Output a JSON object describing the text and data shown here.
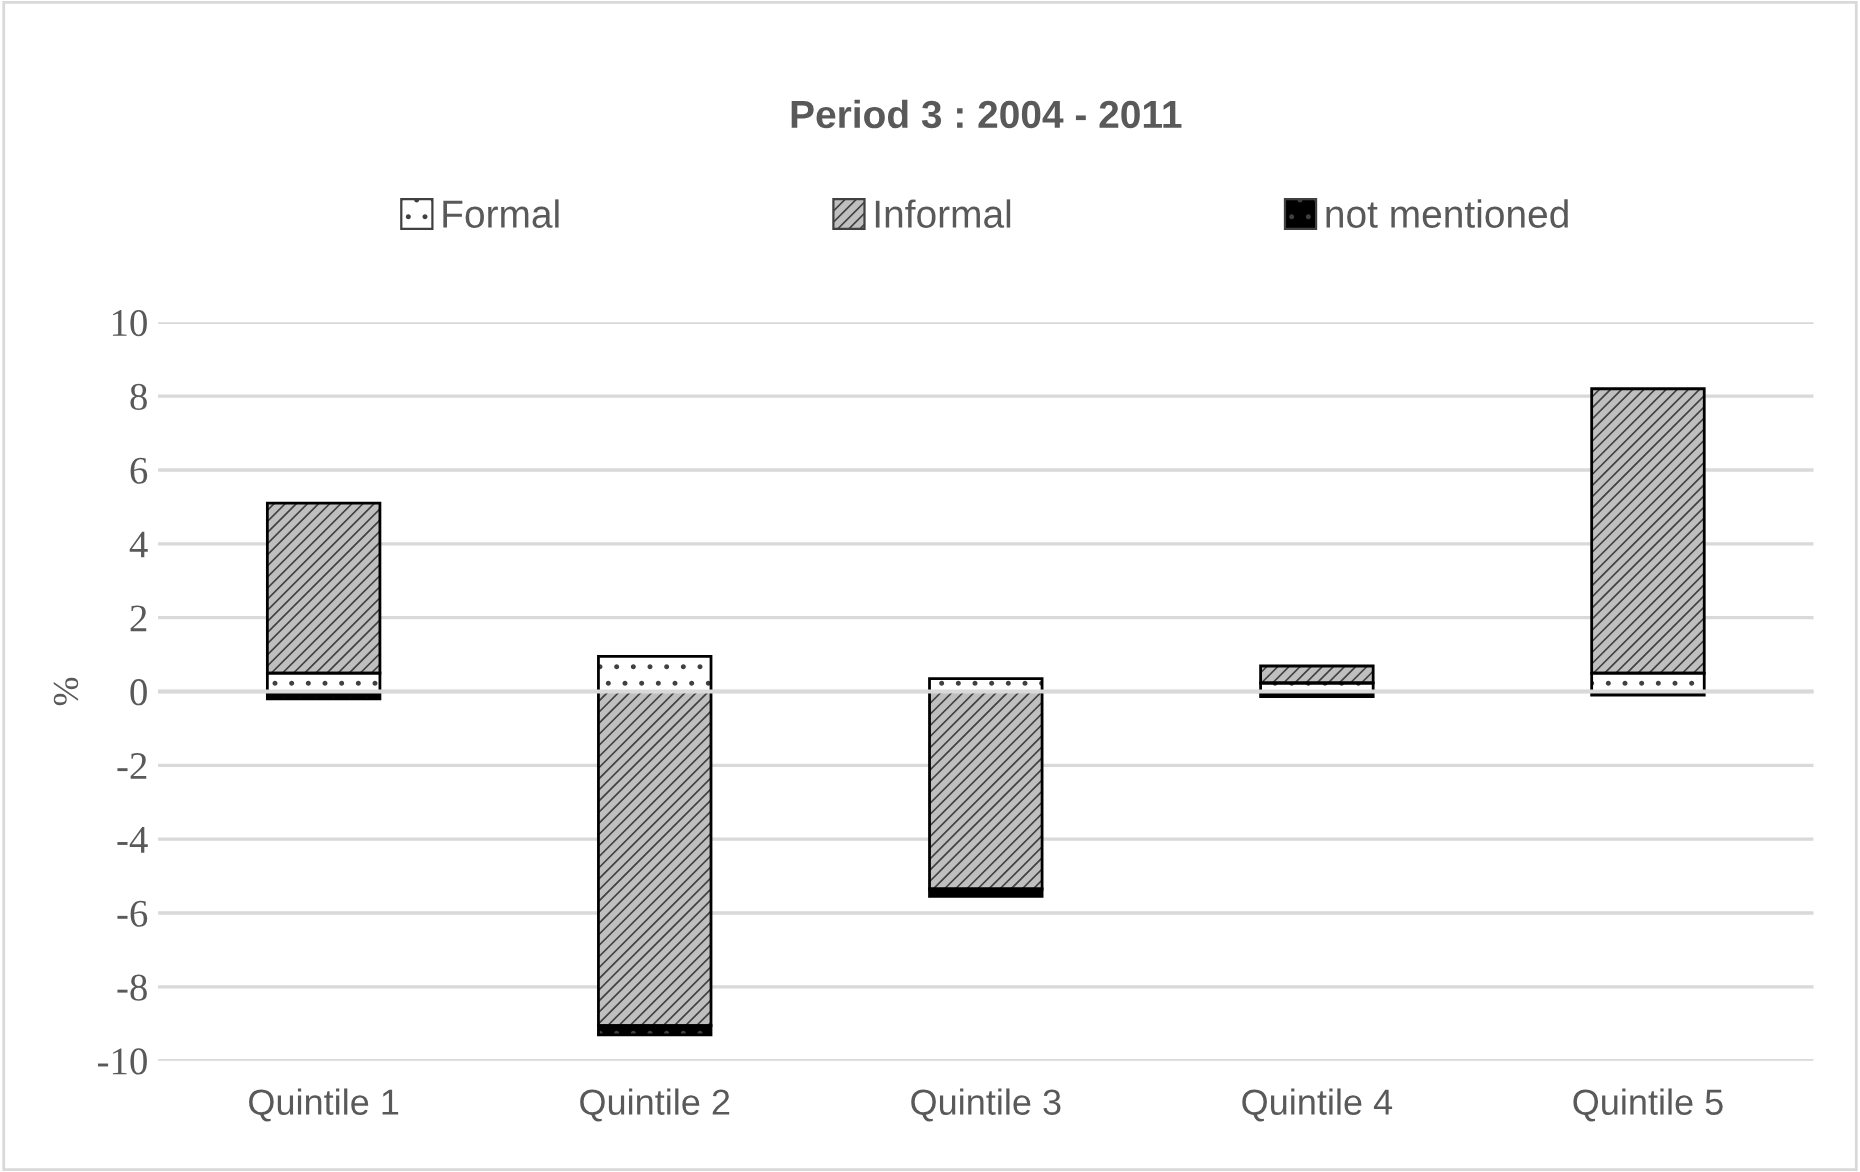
{
  "chart_data": {
    "type": "bar",
    "title": "Period 3 : 2004 - 2011",
    "ylabel": "%",
    "stacked": true,
    "categories": [
      "Quintile 1",
      "Quintile 2",
      "Quintile 3",
      "Quintile 4",
      "Quintile 5"
    ],
    "series": [
      {
        "name": "Formal",
        "color": "#ffffff",
        "values": [
          0.5,
          0.95,
          0.35,
          0.23,
          0.5
        ]
      },
      {
        "name": "Informal",
        "color": "#bfbfbf",
        "values": [
          4.6,
          -9.05,
          -5.35,
          0.46,
          7.7
        ]
      },
      {
        "name": "not mentioned",
        "color": "#000000",
        "values": [
          -0.2,
          -0.25,
          -0.2,
          -0.14,
          -0.1
        ]
      }
    ],
    "ylim": [
      -10,
      10
    ],
    "yticks": [
      -10,
      -8,
      -6,
      -4,
      -2,
      0,
      2,
      4,
      6,
      8,
      10
    ],
    "grid": "y",
    "legend": "top"
  }
}
